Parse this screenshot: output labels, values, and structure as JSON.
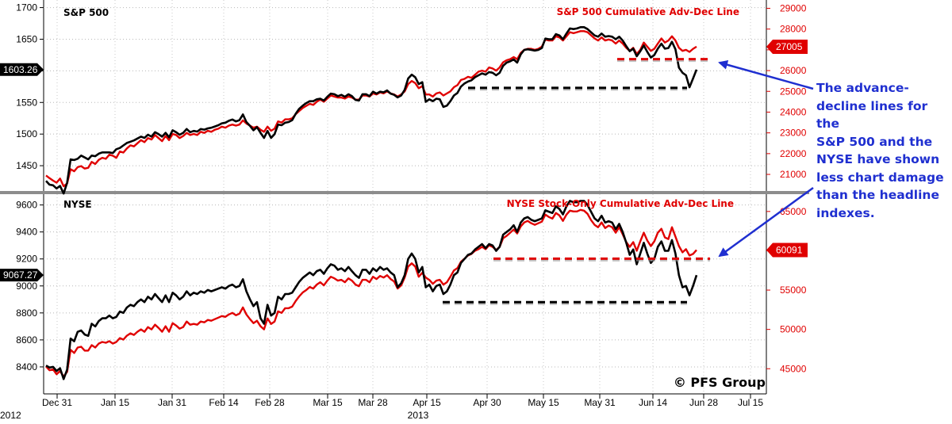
{
  "chart_data": [
    {
      "type": "line",
      "title": "S&P 500",
      "legend": "S&P 500 Cumulative Adv-Dec Line",
      "x_labels": [
        "Dec 31",
        "Jan 15",
        "Jan 31",
        "Feb 14",
        "Feb 28",
        "Mar 15",
        "Mar 28",
        "Apr 15",
        "Apr 30",
        "May 15",
        "May 31",
        "Jun 14",
        "Jun 28",
        "Jul 15"
      ],
      "x_sub_labels": [
        "2012",
        "2013"
      ],
      "y_left_ticks": [
        1450,
        1500,
        1550,
        1600,
        1650,
        1700
      ],
      "y_right_ticks": [
        21000,
        22000,
        23000,
        24000,
        25000,
        26000,
        27000,
        28000,
        29000
      ],
      "y_left_range": [
        1410,
        1712
      ],
      "y_right_range": [
        20200,
        29400
      ],
      "last_value_tag_left": "1603.26",
      "last_value_tag_right": "27005",
      "series": [
        {
          "name": "S&P 500",
          "axis": "left",
          "color": "#000000",
          "values": [
            1426,
            1420,
            1419,
            1414,
            1418,
            1406,
            1423,
            1460,
            1459,
            1461,
            1466,
            1463,
            1460,
            1466,
            1465,
            1469,
            1471,
            1471,
            1471,
            1470,
            1476,
            1478,
            1482,
            1486,
            1488,
            1490,
            1493,
            1496,
            1494,
            1499,
            1496,
            1503,
            1500,
            1496,
            1502,
            1495,
            1506,
            1503,
            1499,
            1502,
            1508,
            1503,
            1505,
            1504,
            1508,
            1507,
            1509,
            1510,
            1512,
            1514,
            1517,
            1518,
            1521,
            1523,
            1520,
            1522,
            1531,
            1519,
            1513,
            1506,
            1511,
            1502,
            1494,
            1505,
            1494,
            1500,
            1515,
            1514,
            1518,
            1519,
            1522,
            1532,
            1540,
            1545,
            1549,
            1552,
            1552,
            1555,
            1556,
            1553,
            1559,
            1564,
            1563,
            1560,
            1562,
            1559,
            1563,
            1560,
            1554,
            1553,
            1563,
            1563,
            1560,
            1567,
            1564,
            1567,
            1566,
            1569,
            1564,
            1562,
            1558,
            1561,
            1570,
            1588,
            1594,
            1590,
            1579,
            1582,
            1551,
            1555,
            1552,
            1556,
            1555,
            1543,
            1545,
            1552,
            1561,
            1565,
            1575,
            1580,
            1583,
            1585,
            1590,
            1593,
            1596,
            1594,
            1598,
            1597,
            1593,
            1597,
            1608,
            1613,
            1615,
            1618,
            1613,
            1626,
            1633,
            1634,
            1633,
            1632,
            1633,
            1636,
            1651,
            1650,
            1650,
            1658,
            1656,
            1650,
            1659,
            1667,
            1666,
            1667,
            1669,
            1669,
            1666,
            1661,
            1656,
            1654,
            1659,
            1654,
            1655,
            1654,
            1650,
            1654,
            1648,
            1639,
            1631,
            1635,
            1623,
            1631,
            1640,
            1630,
            1621,
            1625,
            1635,
            1643,
            1635,
            1636,
            1646,
            1634,
            1605,
            1597,
            1593,
            1574,
            1588,
            1602
          ]
        },
        {
          "name": "S&P 500 Cumulative Adv-Dec Line",
          "axis": "right",
          "color": "#e00000",
          "values": [
            20950,
            20820,
            20700,
            20600,
            20800,
            20430,
            20560,
            21250,
            21150,
            21350,
            21400,
            21280,
            21320,
            21600,
            21500,
            21700,
            21800,
            21750,
            21950,
            21900,
            21800,
            22100,
            22050,
            22250,
            22400,
            22350,
            22500,
            22650,
            22550,
            22750,
            22680,
            22900,
            22750,
            22600,
            22850,
            22650,
            22950,
            22900,
            22750,
            22850,
            23000,
            22900,
            22950,
            22900,
            23050,
            23000,
            23100,
            23050,
            23150,
            23200,
            23300,
            23250,
            23350,
            23400,
            23350,
            23400,
            23600,
            23450,
            23350,
            23250,
            23300,
            23150,
            23050,
            23300,
            23100,
            23200,
            23550,
            23500,
            23650,
            23650,
            23700,
            23900,
            24050,
            24200,
            24300,
            24400,
            24350,
            24500,
            24600,
            24500,
            24650,
            24800,
            24750,
            24700,
            24700,
            24650,
            24750,
            24700,
            24600,
            24600,
            24800,
            24800,
            24750,
            24900,
            24850,
            24950,
            24900,
            25000,
            24900,
            24850,
            24750,
            24850,
            25000,
            25350,
            25500,
            25400,
            25150,
            25250,
            24850,
            24850,
            24750,
            24900,
            24950,
            24800,
            24900,
            25000,
            25200,
            25300,
            25550,
            25600,
            25700,
            25650,
            25800,
            25950,
            26000,
            25950,
            26150,
            26100,
            26000,
            26150,
            26400,
            26500,
            26550,
            26650,
            26550,
            26850,
            27000,
            27050,
            27050,
            27000,
            27050,
            27150,
            27500,
            27450,
            27450,
            27650,
            27600,
            27450,
            27650,
            27850,
            27800,
            27850,
            27900,
            27900,
            27850,
            27700,
            27550,
            27450,
            27600,
            27450,
            27500,
            27450,
            27300,
            27450,
            27300,
            27100,
            26950,
            27100,
            26800,
            27000,
            27350,
            27150,
            26950,
            27050,
            27300,
            27550,
            27350,
            27450,
            27650,
            27450,
            27100,
            26950,
            27000,
            26900,
            27050,
            27150
          ]
        }
      ],
      "support_levels": [
        {
          "axis": "right",
          "value": 26550,
          "color": "#e00000"
        },
        {
          "axis": "left",
          "value": 1573,
          "color": "#000000"
        }
      ]
    },
    {
      "type": "line",
      "title": "NYSE",
      "legend": "NYSE Stock-Only Cumulative Adv-Dec Line",
      "x_labels": [
        "Dec 31",
        "Jan 15",
        "Jan 31",
        "Feb 14",
        "Feb 28",
        "Mar 15",
        "Mar 28",
        "Apr 15",
        "Apr 30",
        "May 15",
        "May 31",
        "Jun 14",
        "Jun 28",
        "Jul 15"
      ],
      "y_left_ticks": [
        8400,
        8600,
        8800,
        9000,
        9200,
        9400,
        9600
      ],
      "y_right_ticks": [
        45000,
        50000,
        55000,
        60000,
        65000
      ],
      "y_left_range": [
        8200,
        9680
      ],
      "y_right_range": [
        41800,
        67200
      ],
      "last_value_tag_left": "9067.27",
      "last_value_tag_right": "60091",
      "series": [
        {
          "name": "NYSE",
          "axis": "left",
          "color": "#000000",
          "values": [
            8410,
            8395,
            8400,
            8370,
            8390,
            8310,
            8380,
            8610,
            8590,
            8660,
            8670,
            8640,
            8630,
            8720,
            8700,
            8740,
            8760,
            8760,
            8780,
            8760,
            8770,
            8810,
            8800,
            8840,
            8860,
            8850,
            8880,
            8900,
            8880,
            8920,
            8900,
            8940,
            8910,
            8880,
            8930,
            8880,
            8950,
            8930,
            8900,
            8920,
            8960,
            8930,
            8950,
            8940,
            8960,
            8950,
            8970,
            8960,
            8970,
            8980,
            8990,
            8980,
            9000,
            9010,
            8990,
            9000,
            9050,
            8960,
            8900,
            8850,
            8880,
            8760,
            8720,
            8860,
            8780,
            8800,
            8920,
            8900,
            8940,
            8940,
            8950,
            8990,
            9030,
            9060,
            9080,
            9100,
            9080,
            9110,
            9120,
            9090,
            9130,
            9160,
            9150,
            9120,
            9130,
            9110,
            9140,
            9110,
            9080,
            9060,
            9120,
            9120,
            9090,
            9130,
            9110,
            9140,
            9120,
            9130,
            9100,
            9080,
            8990,
            9020,
            9080,
            9200,
            9240,
            9200,
            9100,
            9140,
            8990,
            9010,
            8960,
            9000,
            9010,
            8940,
            8960,
            9010,
            9080,
            9100,
            9170,
            9200,
            9230,
            9240,
            9270,
            9290,
            9310,
            9280,
            9310,
            9300,
            9260,
            9290,
            9380,
            9400,
            9420,
            9450,
            9400,
            9470,
            9500,
            9510,
            9490,
            9480,
            9490,
            9500,
            9560,
            9550,
            9540,
            9590,
            9570,
            9530,
            9590,
            9630,
            9620,
            9620,
            9630,
            9630,
            9600,
            9550,
            9500,
            9480,
            9520,
            9470,
            9480,
            9470,
            9420,
            9460,
            9400,
            9320,
            9230,
            9270,
            9160,
            9240,
            9320,
            9240,
            9170,
            9200,
            9290,
            9330,
            9260,
            9260,
            9340,
            9240,
            9080,
            8990,
            9000,
            8930,
            9000,
            9080
          ]
        },
        {
          "name": "NYSE Stock-Only Cumulative Adv-Dec Line",
          "axis": "right",
          "color": "#e00000",
          "values": [
            45300,
            44800,
            44900,
            44300,
            44700,
            44000,
            44600,
            47400,
            47000,
            47700,
            47800,
            47300,
            47300,
            48000,
            47700,
            48200,
            48400,
            48300,
            48500,
            48200,
            48400,
            48900,
            48700,
            49200,
            49500,
            49300,
            49700,
            50000,
            49700,
            50300,
            50000,
            50600,
            50200,
            49700,
            50400,
            49700,
            50800,
            50500,
            50100,
            50300,
            51000,
            50600,
            50700,
            50600,
            51000,
            50900,
            51200,
            51100,
            51300,
            51500,
            51700,
            51600,
            51900,
            52100,
            51800,
            52000,
            52800,
            51900,
            51300,
            50800,
            51100,
            50400,
            50000,
            51400,
            50700,
            51000,
            52300,
            52100,
            52700,
            52700,
            52900,
            53600,
            54200,
            54700,
            55000,
            55400,
            55200,
            55700,
            56000,
            55600,
            56200,
            56700,
            56500,
            56200,
            56300,
            56000,
            56500,
            56200,
            55700,
            55500,
            56300,
            56300,
            56000,
            56700,
            56400,
            56800,
            56600,
            56900,
            56400,
            56100,
            55200,
            55600,
            56600,
            58000,
            58400,
            58000,
            56700,
            57200,
            56600,
            56300,
            55800,
            56200,
            56300,
            55700,
            56000,
            56700,
            57500,
            57800,
            58600,
            59000,
            59400,
            59600,
            60000,
            60200,
            60500,
            60200,
            60700,
            60500,
            60100,
            60500,
            61600,
            61900,
            62300,
            62700,
            62200,
            63100,
            63600,
            63800,
            63500,
            63300,
            63500,
            63700,
            64600,
            64300,
            64100,
            64800,
            64500,
            63800,
            64600,
            65100,
            65000,
            65000,
            65200,
            65100,
            64700,
            63900,
            63300,
            63000,
            63600,
            62900,
            63200,
            63000,
            62300,
            63000,
            62100,
            61100,
            60500,
            61100,
            60000,
            61200,
            62300,
            61300,
            60600,
            61200,
            62300,
            62800,
            61700,
            61500,
            63000,
            61800,
            60600,
            59800,
            60200,
            59400,
            59600,
            60100
          ]
        }
      ],
      "support_levels": [
        {
          "axis": "right",
          "value": 59000,
          "color": "#e00000"
        },
        {
          "axis": "left",
          "value": 8880,
          "color": "#000000"
        }
      ]
    }
  ],
  "annotation": {
    "text": "The advance-\ndecline lines for the\nS&P 500 and the\nNYSE have shown\nless chart damage\nthan the headline\nindexes.",
    "color": "#1f2fd0"
  },
  "copyright": "© PFS Group",
  "colors": {
    "price": "#000000",
    "adline": "#e00000",
    "arrow": "#1f2fd0",
    "divider": "#8c8c8c"
  }
}
